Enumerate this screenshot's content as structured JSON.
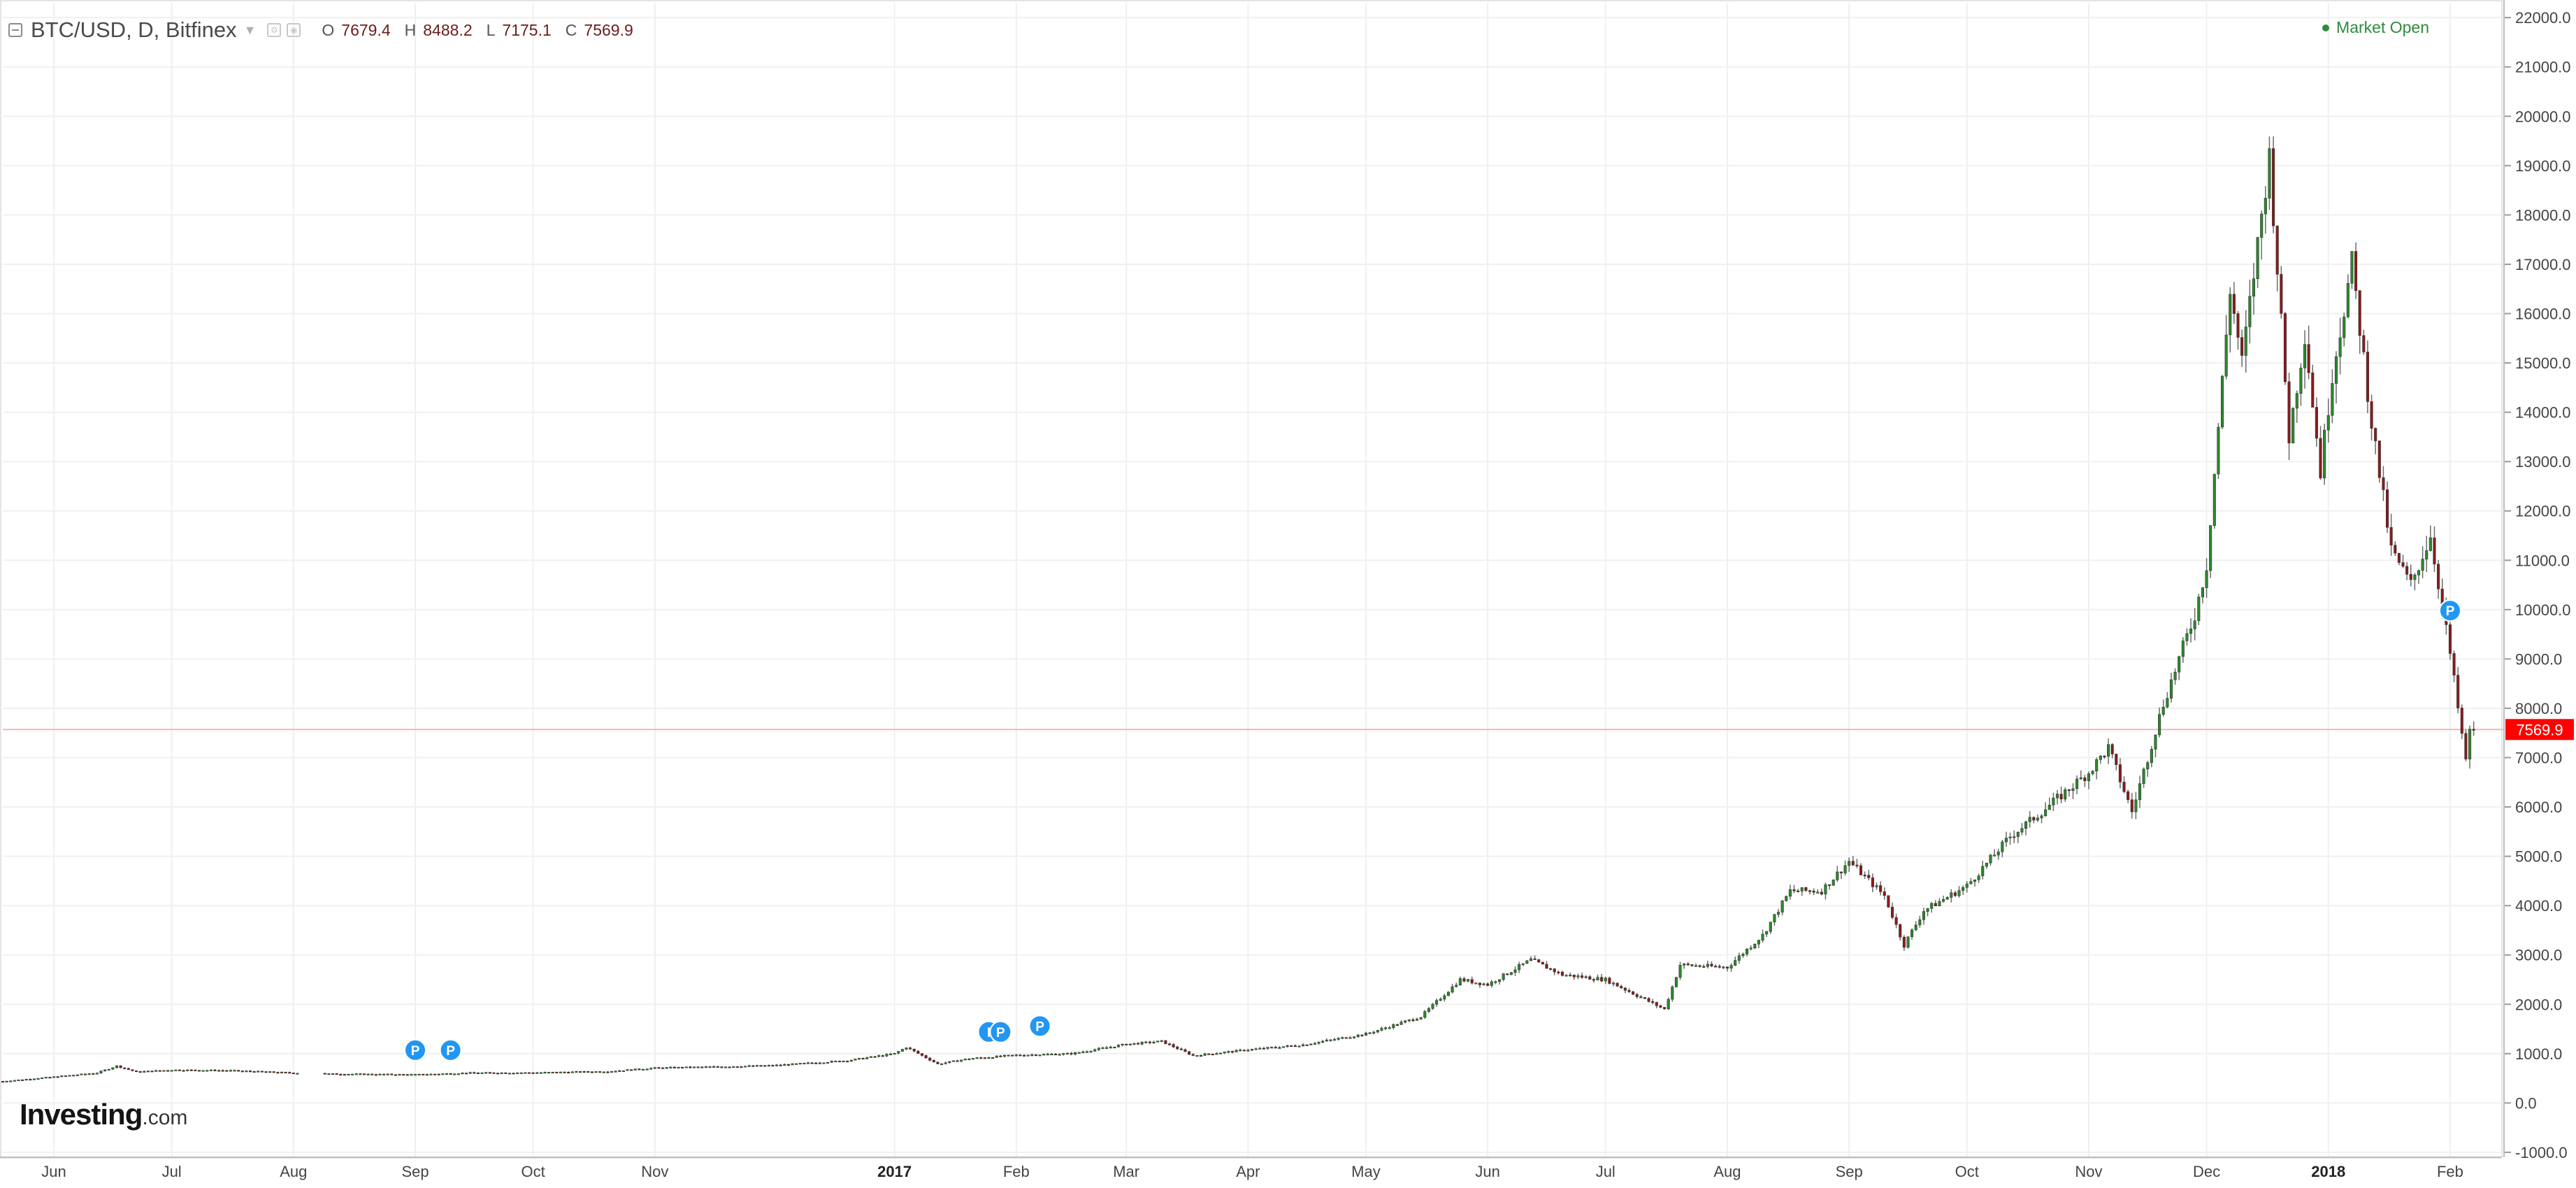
{
  "header": {
    "symbol": "BTC/USD, D, Bitfinex",
    "ohlc": [
      {
        "key": "O",
        "value": "7679.4"
      },
      {
        "key": "H",
        "value": "8488.2"
      },
      {
        "key": "L",
        "value": "7175.1"
      },
      {
        "key": "C",
        "value": "7569.9"
      }
    ]
  },
  "market_status": "Market Open",
  "logo": {
    "brand": "Investing",
    "suffix": ".com"
  },
  "colors": {
    "up": "#2a8a2a",
    "down": "#8b1a1a",
    "wick": "#6b6b6b",
    "grid": "#f0f0f0",
    "price_line": "#f2b8b8",
    "price_label_bg": "#ff0000",
    "marker": "#2196f3"
  },
  "chart_data": {
    "type": "candlestick",
    "title": "BTC/USD, D, Bitfinex",
    "interval": "D",
    "x_range": [
      "2016-05-19",
      "2018-02-14"
    ],
    "ylim": [
      -1100,
      22300
    ],
    "y_ticks": [
      -1000,
      0,
      1000,
      2000,
      3000,
      4000,
      5000,
      6000,
      7000,
      8000,
      9000,
      10000,
      11000,
      12000,
      13000,
      14000,
      15000,
      16000,
      17000,
      18000,
      19000,
      20000,
      21000,
      22000
    ],
    "y_tick_labels": [
      "-1000.0",
      "0.0",
      "1000.0",
      "2000.0",
      "3000.0",
      "4000.0",
      "5000.0",
      "6000.0",
      "7000.0",
      "8000.0",
      "9000.0",
      "10000.0",
      "11000.0",
      "12000.0",
      "13000.0",
      "14000.0",
      "15000.0",
      "16000.0",
      "17000.0",
      "18000.0",
      "19000.0",
      "20000.0",
      "21000.0",
      "22000.0"
    ],
    "x_ticks": [
      {
        "date": "2016-06-01",
        "label": "Jun",
        "bold": false
      },
      {
        "date": "2016-07-01",
        "label": "Jul",
        "bold": false
      },
      {
        "date": "2016-08-01",
        "label": "Aug",
        "bold": false
      },
      {
        "date": "2016-09-01",
        "label": "Sep",
        "bold": false
      },
      {
        "date": "2016-10-01",
        "label": "Oct",
        "bold": false
      },
      {
        "date": "2016-11-01",
        "label": "Nov",
        "bold": false
      },
      {
        "date": "2017-01-01",
        "label": "2017",
        "bold": true
      },
      {
        "date": "2017-02-01",
        "label": "Feb",
        "bold": false
      },
      {
        "date": "2017-03-01",
        "label": "Mar",
        "bold": false
      },
      {
        "date": "2017-04-01",
        "label": "Apr",
        "bold": false
      },
      {
        "date": "2017-05-01",
        "label": "May",
        "bold": false
      },
      {
        "date": "2017-06-01",
        "label": "Jun",
        "bold": false
      },
      {
        "date": "2017-07-01",
        "label": "Jul",
        "bold": false
      },
      {
        "date": "2017-08-01",
        "label": "Aug",
        "bold": false
      },
      {
        "date": "2017-09-01",
        "label": "Sep",
        "bold": false
      },
      {
        "date": "2017-10-01",
        "label": "Oct",
        "bold": false
      },
      {
        "date": "2017-11-01",
        "label": "Nov",
        "bold": false
      },
      {
        "date": "2017-12-01",
        "label": "Dec",
        "bold": false
      },
      {
        "date": "2018-01-01",
        "label": "2018",
        "bold": true
      },
      {
        "date": "2018-02-01",
        "label": "Feb",
        "bold": false
      }
    ],
    "last_price": 7569.9,
    "last_price_label": "7569.9",
    "close_series": [
      {
        "date": "2016-05-19",
        "close": 440
      },
      {
        "date": "2016-06-01",
        "close": 530
      },
      {
        "date": "2016-06-12",
        "close": 610
      },
      {
        "date": "2016-06-17",
        "close": 750
      },
      {
        "date": "2016-06-22",
        "close": 630
      },
      {
        "date": "2016-07-01",
        "close": 670
      },
      {
        "date": "2016-07-15",
        "close": 660
      },
      {
        "date": "2016-08-01",
        "close": 610
      },
      {
        "date": "2016-08-10",
        "close": 590
      },
      {
        "date": "2016-09-01",
        "close": 575
      },
      {
        "date": "2016-09-15",
        "close": 610
      },
      {
        "date": "2016-10-01",
        "close": 615
      },
      {
        "date": "2016-10-20",
        "close": 640
      },
      {
        "date": "2016-11-01",
        "close": 710
      },
      {
        "date": "2016-11-20",
        "close": 740
      },
      {
        "date": "2016-12-01",
        "close": 760
      },
      {
        "date": "2016-12-20",
        "close": 860
      },
      {
        "date": "2017-01-01",
        "close": 1000
      },
      {
        "date": "2017-01-04",
        "close": 1130
      },
      {
        "date": "2017-01-12",
        "close": 790
      },
      {
        "date": "2017-01-20",
        "close": 900
      },
      {
        "date": "2017-02-01",
        "close": 970
      },
      {
        "date": "2017-02-15",
        "close": 1000
      },
      {
        "date": "2017-03-01",
        "close": 1190
      },
      {
        "date": "2017-03-10",
        "close": 1250
      },
      {
        "date": "2017-03-18",
        "close": 960
      },
      {
        "date": "2017-04-01",
        "close": 1080
      },
      {
        "date": "2017-04-15",
        "close": 1180
      },
      {
        "date": "2017-05-01",
        "close": 1400
      },
      {
        "date": "2017-05-15",
        "close": 1750
      },
      {
        "date": "2017-05-25",
        "close": 2500
      },
      {
        "date": "2017-06-01",
        "close": 2400
      },
      {
        "date": "2017-06-12",
        "close": 2900
      },
      {
        "date": "2017-06-20",
        "close": 2600
      },
      {
        "date": "2017-07-01",
        "close": 2500
      },
      {
        "date": "2017-07-16",
        "close": 1900
      },
      {
        "date": "2017-07-20",
        "close": 2800
      },
      {
        "date": "2017-08-01",
        "close": 2750
      },
      {
        "date": "2017-08-10",
        "close": 3400
      },
      {
        "date": "2017-08-17",
        "close": 4300
      },
      {
        "date": "2017-08-25",
        "close": 4300
      },
      {
        "date": "2017-09-01",
        "close": 4900
      },
      {
        "date": "2017-09-10",
        "close": 4200
      },
      {
        "date": "2017-09-15",
        "close": 3200
      },
      {
        "date": "2017-09-20",
        "close": 3900
      },
      {
        "date": "2017-10-01",
        "close": 4400
      },
      {
        "date": "2017-10-12",
        "close": 5400
      },
      {
        "date": "2017-10-20",
        "close": 5900
      },
      {
        "date": "2017-11-01",
        "close": 6700
      },
      {
        "date": "2017-11-06",
        "close": 7200
      },
      {
        "date": "2017-11-12",
        "close": 5900
      },
      {
        "date": "2017-11-20",
        "close": 8100
      },
      {
        "date": "2017-11-28",
        "close": 9900
      },
      {
        "date": "2017-12-01",
        "close": 10900
      },
      {
        "date": "2017-12-07",
        "close": 16500
      },
      {
        "date": "2017-12-10",
        "close": 15000
      },
      {
        "date": "2017-12-17",
        "close": 19200
      },
      {
        "date": "2017-12-22",
        "close": 13500
      },
      {
        "date": "2017-12-26",
        "close": 15600
      },
      {
        "date": "2017-12-30",
        "close": 12800
      },
      {
        "date": "2018-01-02",
        "close": 14800
      },
      {
        "date": "2018-01-07",
        "close": 17000
      },
      {
        "date": "2018-01-12",
        "close": 13800
      },
      {
        "date": "2018-01-17",
        "close": 11200
      },
      {
        "date": "2018-01-22",
        "close": 10500
      },
      {
        "date": "2018-01-27",
        "close": 11500
      },
      {
        "date": "2018-02-01",
        "close": 9100
      },
      {
        "date": "2018-02-05",
        "close": 6900
      },
      {
        "date": "2018-02-06",
        "close": 7600
      },
      {
        "date": "2018-02-07",
        "close": 7570
      }
    ],
    "markers": [
      {
        "label": "P",
        "date": "2016-09-01",
        "price": 1070
      },
      {
        "label": "P",
        "date": "2016-09-10",
        "price": 1070
      },
      {
        "label": "I",
        "date": "2017-01-25",
        "price": 1440
      },
      {
        "label": "P",
        "date": "2017-01-28",
        "price": 1440
      },
      {
        "label": "P",
        "date": "2017-02-07",
        "price": 1560
      },
      {
        "label": "P",
        "date": "2018-02-01",
        "price": 9980
      }
    ]
  }
}
